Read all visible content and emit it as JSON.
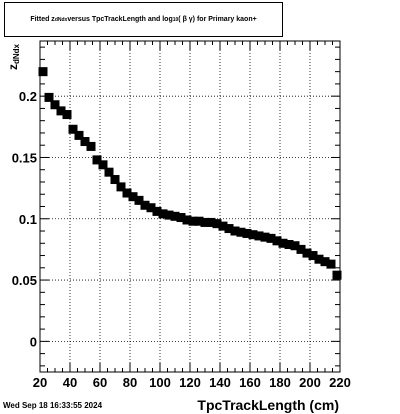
{
  "chart_data": {
    "type": "scatter",
    "title_parts": {
      "t1": "Fitted  z",
      "t2": "dNdx",
      "t3": "  versus TpcTrackLength and log",
      "t4": "10",
      "t5": " ( β γ) for Primary kaon+"
    },
    "ylabel_main": "z",
    "ylabel_sub": "dNdx",
    "xlabel": "TpcTrackLength (cm)",
    "xlim": [
      20,
      220
    ],
    "ylim": [
      -0.025,
      0.245
    ],
    "xticks": [
      20,
      40,
      60,
      80,
      100,
      120,
      140,
      160,
      180,
      200,
      220
    ],
    "yticks": [
      0,
      0.05,
      0.1,
      0.15,
      0.2
    ],
    "ytick_labels": [
      "0",
      "0.05",
      "0.1",
      "0.15",
      "0.2"
    ],
    "grid": true,
    "marker": "square",
    "points": [
      [
        22,
        0.22
      ],
      [
        26,
        0.199
      ],
      [
        30,
        0.193
      ],
      [
        34,
        0.188
      ],
      [
        38,
        0.185
      ],
      [
        42,
        0.173
      ],
      [
        46,
        0.168
      ],
      [
        50,
        0.163
      ],
      [
        54,
        0.159
      ],
      [
        58,
        0.148
      ],
      [
        62,
        0.144
      ],
      [
        66,
        0.138
      ],
      [
        70,
        0.132
      ],
      [
        74,
        0.126
      ],
      [
        78,
        0.121
      ],
      [
        82,
        0.118
      ],
      [
        86,
        0.115
      ],
      [
        90,
        0.111
      ],
      [
        94,
        0.109
      ],
      [
        98,
        0.106
      ],
      [
        102,
        0.104
      ],
      [
        106,
        0.103
      ],
      [
        110,
        0.102
      ],
      [
        114,
        0.101
      ],
      [
        118,
        0.099
      ],
      [
        122,
        0.098
      ],
      [
        126,
        0.098
      ],
      [
        130,
        0.097
      ],
      [
        134,
        0.097
      ],
      [
        138,
        0.096
      ],
      [
        142,
        0.094
      ],
      [
        146,
        0.092
      ],
      [
        150,
        0.09
      ],
      [
        154,
        0.089
      ],
      [
        158,
        0.088
      ],
      [
        162,
        0.087
      ],
      [
        166,
        0.086
      ],
      [
        170,
        0.085
      ],
      [
        174,
        0.084
      ],
      [
        178,
        0.082
      ],
      [
        182,
        0.08
      ],
      [
        186,
        0.079
      ],
      [
        190,
        0.078
      ],
      [
        194,
        0.075
      ],
      [
        198,
        0.072
      ],
      [
        202,
        0.07
      ],
      [
        206,
        0.067
      ],
      [
        210,
        0.065
      ],
      [
        214,
        0.063
      ],
      [
        218,
        0.054
      ]
    ]
  },
  "timestamp": "Wed Sep 18 16:33:55 2024"
}
